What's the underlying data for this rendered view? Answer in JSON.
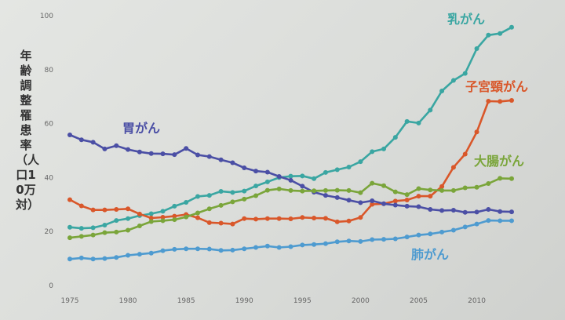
{
  "chart_data": {
    "type": "line",
    "title": "",
    "xlabel": "",
    "ylabel": "年齢調整罹患率（人口10万対）",
    "xlim": [
      1975,
      2013
    ],
    "ylim": [
      0,
      100
    ],
    "xticks": [
      1975,
      1980,
      1985,
      1990,
      1995,
      2000,
      2005,
      2010
    ],
    "yticks": [
      0,
      20,
      40,
      60,
      80,
      100
    ],
    "grid": false,
    "legend": "inline labels",
    "x": [
      1975,
      1976,
      1977,
      1978,
      1979,
      1980,
      1981,
      1982,
      1983,
      1984,
      1985,
      1986,
      1987,
      1988,
      1989,
      1990,
      1991,
      1992,
      1993,
      1994,
      1995,
      1996,
      1997,
      1998,
      1999,
      2000,
      2001,
      2002,
      2003,
      2004,
      2005,
      2006,
      2007,
      2008,
      2009,
      2010,
      2011,
      2012,
      2013
    ],
    "series": [
      {
        "name": "乳がん",
        "color": "#3aa6a2",
        "values": [
          21.6,
          21.2,
          21.4,
          22.4,
          24.1,
          24.8,
          25.9,
          26.6,
          27.5,
          29.4,
          30.8,
          33.0,
          33.4,
          34.9,
          34.5,
          35.0,
          36.9,
          38.4,
          40.0,
          40.5,
          40.6,
          39.6,
          41.9,
          42.9,
          43.9,
          45.9,
          49.6,
          50.6,
          54.9,
          60.8,
          60.2,
          65.0,
          72.1,
          76.0,
          78.6,
          87.8,
          92.8,
          93.4,
          95.7
        ]
      },
      {
        "name": "子宮頸がん",
        "color": "#d9572a",
        "values": [
          31.8,
          29.5,
          28.0,
          28.0,
          28.2,
          28.4,
          26.5,
          25.0,
          25.3,
          25.7,
          26.3,
          25.1,
          23.3,
          23.1,
          22.8,
          24.8,
          24.6,
          24.8,
          24.8,
          24.7,
          25.2,
          25.0,
          24.9,
          23.6,
          23.9,
          25.2,
          30.1,
          30.3,
          31.3,
          31.7,
          33.1,
          33.1,
          36.7,
          43.8,
          48.7,
          56.9,
          68.3,
          68.2,
          68.6
        ]
      },
      {
        "name": "胃がん",
        "color": "#4b4fa5",
        "values": [
          55.8,
          54.0,
          53.1,
          50.6,
          51.8,
          50.4,
          49.5,
          48.9,
          48.8,
          48.5,
          50.8,
          48.4,
          47.8,
          46.6,
          45.5,
          43.6,
          42.4,
          42.0,
          40.4,
          39.0,
          36.8,
          34.6,
          33.4,
          32.6,
          31.6,
          30.7,
          31.4,
          30.3,
          29.8,
          29.4,
          29.2,
          28.2,
          27.8,
          27.9,
          27.1,
          27.2,
          28.2,
          27.4,
          27.3
        ]
      },
      {
        "name": "大腸がん",
        "color": "#7aa53a",
        "values": [
          17.7,
          18.2,
          18.7,
          19.6,
          19.8,
          20.5,
          22.1,
          23.7,
          24.0,
          24.4,
          25.4,
          26.9,
          28.4,
          29.7,
          31.0,
          32.0,
          33.3,
          35.3,
          35.8,
          35.2,
          35.0,
          35.1,
          35.2,
          35.3,
          35.2,
          34.4,
          37.9,
          37.0,
          34.7,
          33.7,
          35.9,
          35.4,
          35.2,
          35.2,
          36.2,
          36.4,
          37.8,
          39.7,
          39.6
        ]
      },
      {
        "name": "肺がん",
        "color": "#4e9bd0",
        "values": [
          9.8,
          10.2,
          9.8,
          10.0,
          10.4,
          11.2,
          11.6,
          12.0,
          12.9,
          13.4,
          13.6,
          13.6,
          13.5,
          13.0,
          13.1,
          13.6,
          14.1,
          14.6,
          14.1,
          14.4,
          15.0,
          15.2,
          15.5,
          16.2,
          16.5,
          16.3,
          17.0,
          17.1,
          17.3,
          18.0,
          18.7,
          19.1,
          19.8,
          20.5,
          21.7,
          22.8,
          24.1,
          24.0,
          24.0
        ]
      }
    ],
    "labels": [
      "乳がん",
      "子宮頸がん",
      "胃がん",
      "大腸がん",
      "肺がん"
    ]
  }
}
